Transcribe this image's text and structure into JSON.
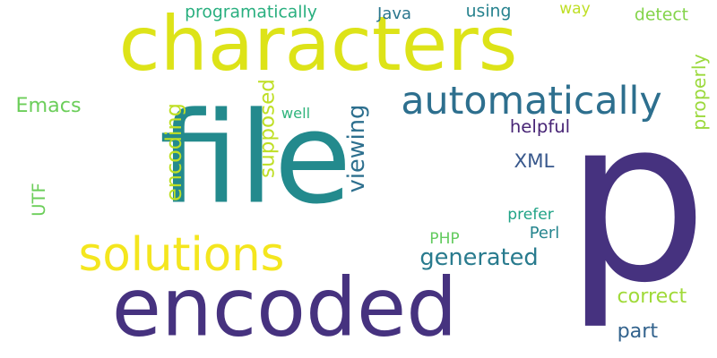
{
  "words": [
    {
      "text": "file",
      "color": "#238a8d",
      "vertical": false
    },
    {
      "text": "p",
      "color": "#46327f",
      "vertical": false
    },
    {
      "text": "characters",
      "color": "#dde318",
      "vertical": false
    },
    {
      "text": "encoded",
      "color": "#46327f",
      "vertical": false
    },
    {
      "text": "solutions",
      "color": "#f4e61e",
      "vertical": false
    },
    {
      "text": "automatically",
      "color": "#2d6f8e",
      "vertical": false
    },
    {
      "text": "encoding",
      "color": "#bfdf25",
      "vertical": true
    },
    {
      "text": "supposed",
      "color": "#bfdf25",
      "vertical": true
    },
    {
      "text": "viewing",
      "color": "#2d6f8e",
      "vertical": true
    },
    {
      "text": "UTF",
      "color": "#6cce5a",
      "vertical": true
    },
    {
      "text": "properly",
      "color": "#9bd93c",
      "vertical": true
    },
    {
      "text": "programatically",
      "color": "#29af7f",
      "vertical": false
    },
    {
      "text": "Java",
      "color": "#2a768e",
      "vertical": false
    },
    {
      "text": "using",
      "color": "#26828e",
      "vertical": false
    },
    {
      "text": "way",
      "color": "#bfdf25",
      "vertical": false
    },
    {
      "text": "detect",
      "color": "#84d44b",
      "vertical": false
    },
    {
      "text": "Emacs",
      "color": "#6cce5a",
      "vertical": false
    },
    {
      "text": "well",
      "color": "#2fb47c",
      "vertical": false
    },
    {
      "text": "helpful",
      "color": "#482576",
      "vertical": false
    },
    {
      "text": "XML",
      "color": "#38588c",
      "vertical": false
    },
    {
      "text": "prefer",
      "color": "#20a386",
      "vertical": false
    },
    {
      "text": "PHP",
      "color": "#63cb5f",
      "vertical": false
    },
    {
      "text": "Perl",
      "color": "#25858e",
      "vertical": false
    },
    {
      "text": "generated",
      "color": "#297b8e",
      "vertical": false
    },
    {
      "text": "correct",
      "color": "#a0da39",
      "vertical": false
    },
    {
      "text": "part",
      "color": "#33638d",
      "vertical": false
    }
  ]
}
